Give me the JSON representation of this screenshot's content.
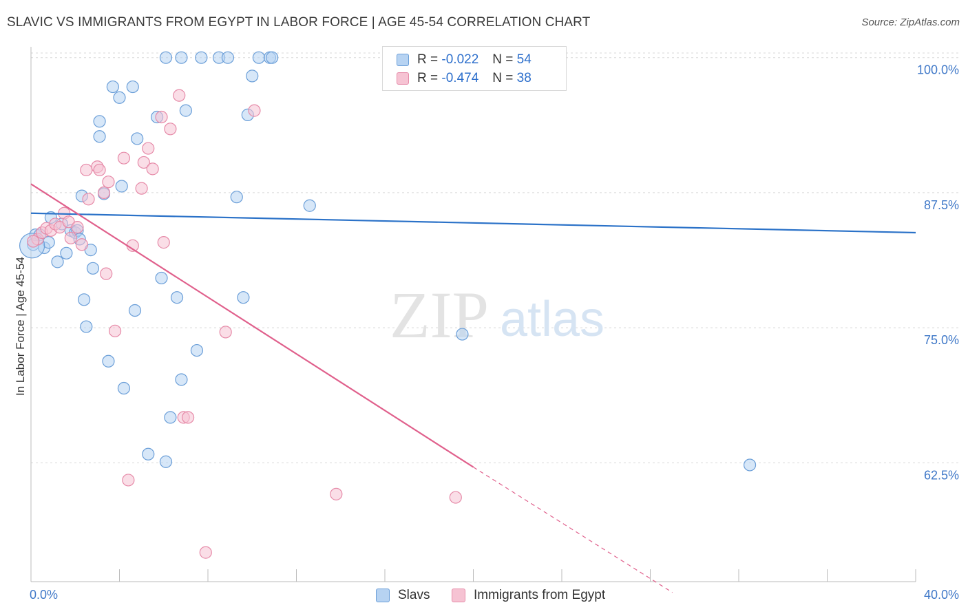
{
  "header": {
    "title": "SLAVIC VS IMMIGRANTS FROM EGYPT IN LABOR FORCE | AGE 45-54 CORRELATION CHART",
    "source": "Source: ZipAtlas.com"
  },
  "watermark": {
    "zip": "ZIP",
    "atlas": "atlas"
  },
  "legend": {
    "rows": [
      {
        "r_label": "R =",
        "r_value": "-0.022",
        "n_label": "N =",
        "n_value": "54"
      },
      {
        "r_label": "R =",
        "r_value": "-0.474",
        "n_label": "N =",
        "n_value": "38"
      }
    ]
  },
  "colors": {
    "slavs_fill": "#b7d3f2",
    "slavs_stroke": "#6a9ed8",
    "slavs_line": "#2b72c8",
    "egypt_fill": "#f6c3d3",
    "egypt_stroke": "#e68aa8",
    "egypt_line": "#e0608c",
    "axis_text": "#3f78c8",
    "grid": "#d8d8d8"
  },
  "chart_data": {
    "type": "scatter",
    "title": "SLAVIC VS IMMIGRANTS FROM EGYPT IN LABOR FORCE | AGE 45-54 CORRELATION CHART",
    "xlabel": "",
    "ylabel": "In Labor Force | Age 45-54",
    "xlim": [
      0,
      40
    ],
    "ylim": [
      51.5,
      101
    ],
    "x_tick_labels": [
      "0.0%",
      "40.0%"
    ],
    "y_ticks": [
      62.5,
      75.0,
      87.5,
      100.0
    ],
    "y_tick_labels": [
      "62.5%",
      "75.0%",
      "87.5%",
      "100.0%"
    ],
    "grid": true,
    "legend_position": "top-center",
    "series": [
      {
        "name": "Slavs",
        "color": "#6a9ed8",
        "points": [
          [
            0.1,
            82.7
          ],
          [
            0.2,
            83.6
          ],
          [
            0.4,
            83.6
          ],
          [
            0.6,
            82.4
          ],
          [
            0.8,
            82.9
          ],
          [
            0.9,
            85.2
          ],
          [
            1.2,
            81.1
          ],
          [
            1.4,
            84.6
          ],
          [
            1.6,
            81.9
          ],
          [
            1.8,
            84.0
          ],
          [
            2.0,
            83.8
          ],
          [
            2.1,
            84.0
          ],
          [
            2.2,
            83.2
          ],
          [
            2.3,
            87.2
          ],
          [
            2.4,
            77.6
          ],
          [
            2.5,
            75.1
          ],
          [
            2.7,
            82.2
          ],
          [
            2.8,
            80.5
          ],
          [
            3.1,
            94.1
          ],
          [
            3.1,
            92.7
          ],
          [
            3.3,
            87.4
          ],
          [
            3.5,
            71.9
          ],
          [
            3.7,
            97.3
          ],
          [
            4.0,
            96.3
          ],
          [
            4.1,
            88.1
          ],
          [
            4.2,
            69.4
          ],
          [
            4.6,
            97.3
          ],
          [
            4.7,
            76.6
          ],
          [
            4.8,
            92.5
          ],
          [
            5.3,
            63.3
          ],
          [
            5.7,
            94.5
          ],
          [
            5.9,
            79.6
          ],
          [
            6.1,
            62.6
          ],
          [
            6.1,
            100.0
          ],
          [
            6.3,
            66.7
          ],
          [
            6.6,
            77.8
          ],
          [
            6.8,
            100.0
          ],
          [
            6.8,
            70.2
          ],
          [
            7.0,
            95.1
          ],
          [
            7.5,
            72.9
          ],
          [
            7.7,
            100.0
          ],
          [
            8.5,
            100.0
          ],
          [
            8.9,
            100.0
          ],
          [
            9.3,
            87.1
          ],
          [
            9.6,
            77.8
          ],
          [
            9.8,
            94.7
          ],
          [
            10.0,
            98.3
          ],
          [
            10.3,
            100.0
          ],
          [
            10.8,
            100.0
          ],
          [
            10.9,
            100.0
          ],
          [
            12.6,
            86.3
          ],
          [
            19.5,
            74.4
          ],
          [
            32.5,
            62.3
          ],
          [
            0.05,
            82.6
          ]
        ],
        "trend": {
          "x": [
            0,
            40
          ],
          "y": [
            85.6,
            83.8
          ]
        }
      },
      {
        "name": "Immigrants from Egypt",
        "color": "#e68aa8",
        "points": [
          [
            0.3,
            83.2
          ],
          [
            0.5,
            83.8
          ],
          [
            0.7,
            84.2
          ],
          [
            0.9,
            84.0
          ],
          [
            1.1,
            84.6
          ],
          [
            1.3,
            84.3
          ],
          [
            1.5,
            85.6
          ],
          [
            1.7,
            84.8
          ],
          [
            1.8,
            83.3
          ],
          [
            2.1,
            84.3
          ],
          [
            2.3,
            82.7
          ],
          [
            2.5,
            89.6
          ],
          [
            2.6,
            86.9
          ],
          [
            3.0,
            89.9
          ],
          [
            3.1,
            89.6
          ],
          [
            3.3,
            87.5
          ],
          [
            3.4,
            80.0
          ],
          [
            3.5,
            88.5
          ],
          [
            3.8,
            74.7
          ],
          [
            4.2,
            90.7
          ],
          [
            4.4,
            60.9
          ],
          [
            4.6,
            82.6
          ],
          [
            5.0,
            87.9
          ],
          [
            5.1,
            90.3
          ],
          [
            5.3,
            91.6
          ],
          [
            5.5,
            89.7
          ],
          [
            5.9,
            94.5
          ],
          [
            6.0,
            82.9
          ],
          [
            6.3,
            93.4
          ],
          [
            6.7,
            96.5
          ],
          [
            6.9,
            66.7
          ],
          [
            7.1,
            66.7
          ],
          [
            7.9,
            54.2
          ],
          [
            8.8,
            74.6
          ],
          [
            10.1,
            95.1
          ],
          [
            13.8,
            59.6
          ],
          [
            19.2,
            59.3
          ],
          [
            0.1,
            83.0
          ]
        ],
        "trend": {
          "x": [
            0,
            20
          ],
          "y": [
            88.3,
            62.1
          ]
        },
        "trend_dashed": {
          "x": [
            20,
            29
          ],
          "y": [
            62.1,
            50.5
          ]
        }
      }
    ]
  },
  "bottom_legend": {
    "items": [
      {
        "label": "Slavs"
      },
      {
        "label": "Immigrants from Egypt"
      }
    ]
  }
}
